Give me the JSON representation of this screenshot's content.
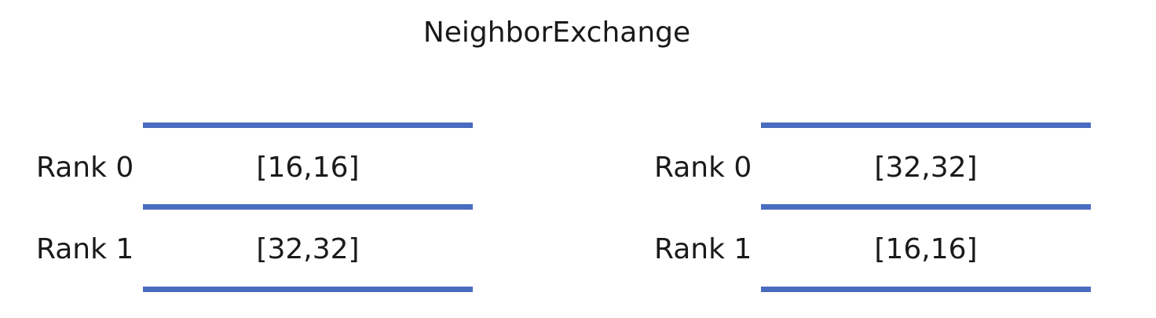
{
  "title": "NeighborExchange",
  "tables": [
    {
      "rows": [
        {
          "rank": "Rank 0",
          "value": "[16,16]"
        },
        {
          "rank": "Rank 1",
          "value": "[32,32]"
        }
      ]
    },
    {
      "rows": [
        {
          "rank": "Rank 0",
          "value": "[32,32]"
        },
        {
          "rank": "Rank 1",
          "value": "[16,16]"
        }
      ]
    }
  ],
  "colors": {
    "rule": "#4a6cc0",
    "text": "#1a1a1a",
    "background": "#ffffff"
  }
}
